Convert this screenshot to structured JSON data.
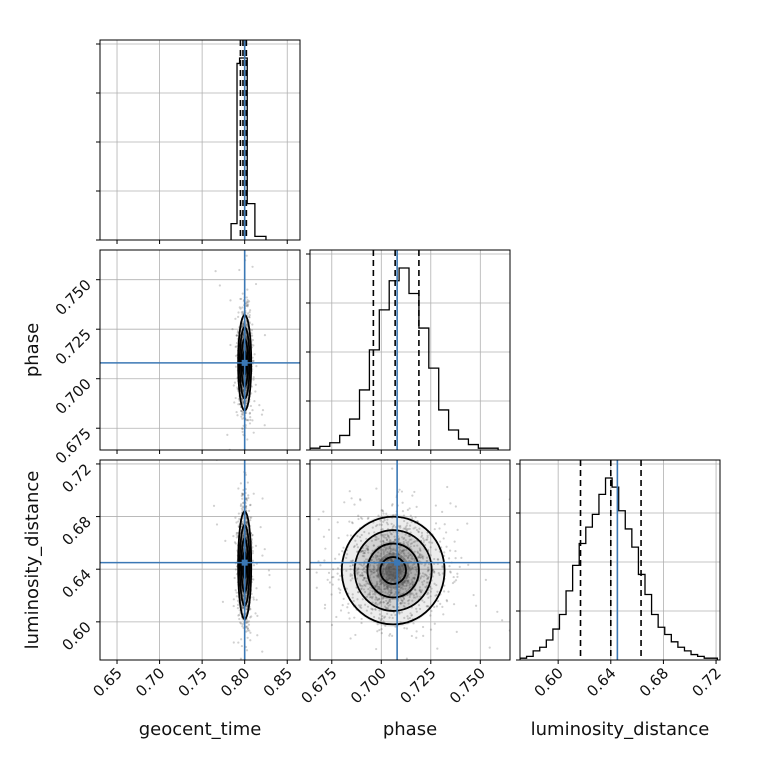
{
  "chart_data": {
    "type": "corner",
    "parameters": [
      "geocent_time",
      "phase",
      "luminosity_distance"
    ],
    "grid": true,
    "truth_color": "#3b78b5",
    "truths": {
      "geocent_time": 0.8,
      "phase": 0.708,
      "luminosity_distance": 0.645
    },
    "quantiles": {
      "geocent_time": [
        0.795,
        0.798,
        0.802
      ],
      "phase": [
        0.696,
        0.707,
        0.719
      ],
      "luminosity_distance": [
        0.617,
        0.64,
        0.663
      ]
    },
    "ranges": {
      "geocent_time": [
        0.63,
        0.865
      ],
      "phase": [
        0.664,
        0.765
      ],
      "luminosity_distance": [
        0.571,
        0.723
      ]
    },
    "ticks": {
      "geocent_time": [
        "0.65",
        "0.70",
        "0.75",
        "0.80",
        "0.85"
      ],
      "phase": [
        "0.675",
        "0.700",
        "0.725",
        "0.750"
      ],
      "luminosity_distance": [
        "0.60",
        "0.64",
        "0.68",
        "0.72"
      ]
    },
    "histograms": {
      "geocent_time": {
        "edges": [
          0.784,
          0.791,
          0.794,
          0.803,
          0.812,
          0.825
        ],
        "counts": [
          0.09,
          0.97,
          1.0,
          0.2,
          0.02
        ]
      },
      "phase": {
        "edges": [
          0.664,
          0.669,
          0.674,
          0.679,
          0.684,
          0.689,
          0.694,
          0.699,
          0.704,
          0.709,
          0.714,
          0.719,
          0.724,
          0.729,
          0.734,
          0.739,
          0.744,
          0.749,
          0.754,
          0.759
        ],
        "counts": [
          0.01,
          0.02,
          0.04,
          0.08,
          0.17,
          0.33,
          0.55,
          0.77,
          0.93,
          1.0,
          0.86,
          0.67,
          0.45,
          0.22,
          0.11,
          0.06,
          0.03,
          0.01,
          0.01
        ]
      },
      "luminosity_distance": {
        "edges": [
          0.571,
          0.576,
          0.581,
          0.586,
          0.591,
          0.596,
          0.601,
          0.606,
          0.611,
          0.616,
          0.621,
          0.626,
          0.631,
          0.636,
          0.641,
          0.646,
          0.651,
          0.656,
          0.661,
          0.666,
          0.671,
          0.676,
          0.681,
          0.686,
          0.691,
          0.696,
          0.701,
          0.706,
          0.711,
          0.716,
          0.721
        ],
        "counts": [
          0.01,
          0.02,
          0.05,
          0.07,
          0.11,
          0.17,
          0.25,
          0.38,
          0.52,
          0.64,
          0.73,
          0.8,
          0.91,
          1.0,
          0.95,
          0.82,
          0.72,
          0.62,
          0.47,
          0.36,
          0.25,
          0.18,
          0.14,
          0.1,
          0.07,
          0.05,
          0.03,
          0.02,
          0.01,
          0.01
        ]
      }
    },
    "panels_2d": [
      {
        "x": "geocent_time",
        "y": "phase",
        "center": [
          0.8,
          0.708
        ],
        "sigma": [
          0.0035,
          0.0115
        ]
      },
      {
        "x": "geocent_time",
        "y": "luminosity_distance",
        "center": [
          0.8,
          0.643
        ],
        "sigma": [
          0.0035,
          0.0195
        ]
      },
      {
        "x": "phase",
        "y": "luminosity_distance",
        "center": [
          0.706,
          0.639
        ],
        "sigma": [
          0.0118,
          0.0195
        ]
      }
    ],
    "contour_levels_sigma": [
      0.5,
      1.0,
      1.5,
      2.0
    ]
  }
}
